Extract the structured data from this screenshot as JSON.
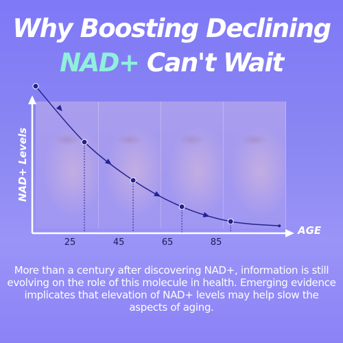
{
  "headline": {
    "line1": "Why Boosting Declining",
    "line2_highlight": "NAD+",
    "line2_rest": " Can't Wait"
  },
  "chart_data": {
    "type": "line",
    "title": "",
    "xlabel": "AGE",
    "ylabel": "NAD+ Levels",
    "x_ticks": [
      "25",
      "45",
      "65",
      "85"
    ],
    "series": [
      {
        "x": [
          5,
          25,
          45,
          65,
          85,
          105
        ],
        "y": [
          100,
          62,
          36,
          18,
          8,
          5
        ]
      }
    ],
    "xlim": [
      5,
      110
    ],
    "ylim": [
      0,
      125
    ],
    "line_color": "#24228f",
    "axis_color": "#ffffff",
    "grid": false
  },
  "body": {
    "text": "More than a century after discovering NAD+, information is still evolving on the role of this molecule in health. Emerging evidence implicates that elevation of NAD+ levels may help slow the aspects of aging."
  }
}
